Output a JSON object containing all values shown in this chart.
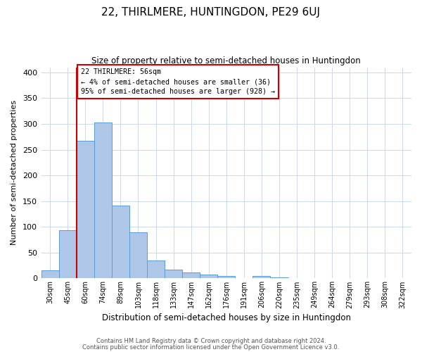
{
  "title": "22, THIRLMERE, HUNTINGDON, PE29 6UJ",
  "subtitle": "Size of property relative to semi-detached houses in Huntingdon",
  "xlabel": "Distribution of semi-detached houses by size in Huntingdon",
  "ylabel": "Number of semi-detached properties",
  "bar_labels": [
    "30sqm",
    "45sqm",
    "60sqm",
    "74sqm",
    "89sqm",
    "103sqm",
    "118sqm",
    "133sqm",
    "147sqm",
    "162sqm",
    "176sqm",
    "191sqm",
    "206sqm",
    "220sqm",
    "235sqm",
    "249sqm",
    "264sqm",
    "279sqm",
    "293sqm",
    "308sqm",
    "322sqm"
  ],
  "bar_values": [
    15,
    93,
    267,
    303,
    142,
    90,
    35,
    17,
    12,
    8,
    4,
    0,
    4,
    2,
    0,
    0,
    0,
    0,
    0,
    0,
    0
  ],
  "bar_color": "#aec6e8",
  "bar_edge_color": "#5b9bd5",
  "vline_x_index": 1.5,
  "annotation_title": "22 THIRLMERE: 56sqm",
  "annotation_line1": "← 4% of semi-detached houses are smaller (36)",
  "annotation_line2": "95% of semi-detached houses are larger (928) →",
  "annotation_box_color": "#ffffff",
  "annotation_box_edge": "#cc0000",
  "vline_color": "#cc0000",
  "ylim": [
    0,
    410
  ],
  "yticks": [
    0,
    50,
    100,
    150,
    200,
    250,
    300,
    350,
    400
  ],
  "footer1": "Contains HM Land Registry data © Crown copyright and database right 2024.",
  "footer2": "Contains public sector information licensed under the Open Government Licence v3.0.",
  "bg_color": "#ffffff",
  "grid_color": "#ccd8ea"
}
